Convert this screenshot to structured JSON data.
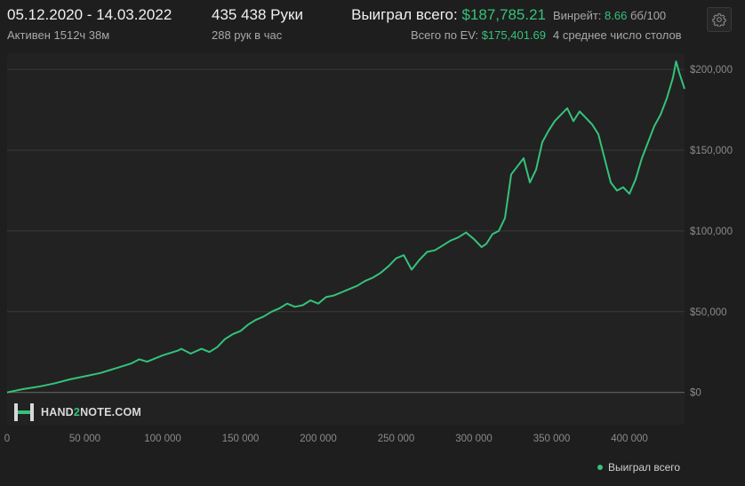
{
  "header": {
    "date_range": "05.12.2020 - 14.03.2022",
    "active_time": "Активен 1512ч 38м",
    "hands_total": "435 438 Руки",
    "hands_per_hour": "288 рук в час",
    "won_total_label": "Выиграл всего:",
    "won_total_value": "$187,785.21",
    "ev_total_label": "Всего по EV:",
    "ev_total_value": "$175,401.69",
    "winrate_label": "Винрейт:",
    "winrate_value": "8.66",
    "winrate_unit": "бб/100",
    "avg_tables": "4 среднее число столов",
    "settings_icon": "gear-icon"
  },
  "watermark": {
    "icon": "hand2note-logo",
    "text_a": "HAND",
    "text_b": "2",
    "text_c": "NOTE.COM"
  },
  "legend": {
    "label": "Выиграл всего"
  },
  "colors": {
    "background": "#1e1e1e",
    "series": "#35c27a",
    "grid": "#3a3a3a",
    "axis_text": "#8a8a8a"
  },
  "chart_data": {
    "type": "line",
    "xlim": [
      0,
      435438
    ],
    "ylim": [
      -20000,
      210000
    ],
    "x_ticks": [
      0,
      50000,
      100000,
      150000,
      200000,
      250000,
      300000,
      350000,
      400000
    ],
    "x_tick_labels": [
      "0",
      "50 000",
      "100 000",
      "150 000",
      "200 000",
      "250 000",
      "300 000",
      "350 000",
      "400 000"
    ],
    "y_ticks": [
      0,
      50000,
      100000,
      150000,
      200000
    ],
    "y_tick_labels": [
      "$0",
      "$50,000",
      "$100,000",
      "$150,000",
      "$200,000"
    ],
    "grid": true,
    "legend_position": "bottom-right",
    "series": [
      {
        "name": "Выиграл всего",
        "x": [
          0,
          10000,
          20000,
          30000,
          40000,
          50000,
          60000,
          70000,
          80000,
          85000,
          90000,
          100000,
          110000,
          112000,
          118000,
          125000,
          130000,
          135000,
          140000,
          145000,
          150000,
          155000,
          160000,
          165000,
          170000,
          175000,
          180000,
          185000,
          190000,
          195000,
          200000,
          205000,
          210000,
          215000,
          220000,
          225000,
          230000,
          235000,
          240000,
          245000,
          250000,
          255000,
          260000,
          265000,
          270000,
          275000,
          280000,
          285000,
          290000,
          295000,
          300000,
          305000,
          308000,
          312000,
          316000,
          320000,
          324000,
          328000,
          332000,
          336000,
          340000,
          344000,
          348000,
          352000,
          356000,
          360000,
          364000,
          368000,
          372000,
          376000,
          380000,
          384000,
          388000,
          392000,
          396000,
          400000,
          404000,
          408000,
          412000,
          416000,
          420000,
          424000,
          428000,
          430000,
          432000,
          435438
        ],
        "y": [
          0,
          2000,
          3500,
          5500,
          8000,
          10000,
          12000,
          15000,
          18000,
          20500,
          19000,
          23000,
          26000,
          27000,
          24000,
          27000,
          25000,
          28000,
          33000,
          36000,
          38000,
          42000,
          45000,
          47000,
          50000,
          52000,
          55000,
          53000,
          54000,
          57000,
          55000,
          59000,
          60000,
          62000,
          64000,
          66000,
          69000,
          71000,
          74000,
          78000,
          83000,
          85000,
          76000,
          82000,
          87000,
          88000,
          91000,
          94000,
          96000,
          99000,
          95000,
          90000,
          92000,
          98000,
          100000,
          108000,
          135000,
          140000,
          145000,
          130000,
          138000,
          155000,
          162000,
          168000,
          172000,
          176000,
          168000,
          174000,
          170000,
          166000,
          160000,
          145000,
          130000,
          125000,
          127000,
          123000,
          132000,
          145000,
          155000,
          165000,
          172000,
          182000,
          195000,
          205000,
          198000,
          188000
        ]
      }
    ]
  }
}
